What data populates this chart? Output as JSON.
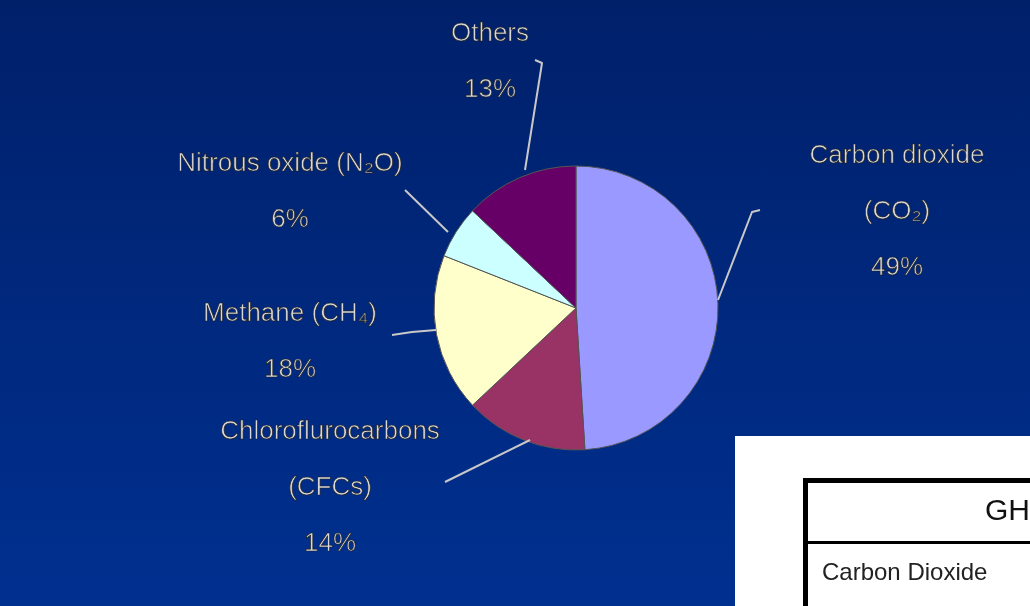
{
  "chart_data": {
    "type": "pie",
    "categories": [
      "Carbon dioxide (CO₂)",
      "Chloroflurocarbons (CFCs)",
      "Methane (CH₄)",
      "Nitrous oxide (N₂O)",
      "Others"
    ],
    "values": [
      49,
      14,
      18,
      6,
      13
    ],
    "value_labels": [
      "49%",
      "14%",
      "18%",
      "6%",
      "13%"
    ],
    "colors": [
      "#9999ff",
      "#993366",
      "#ffffcc",
      "#ccffff",
      "#660066"
    ],
    "annotations": [
      "GH",
      "Carbon Dioxide"
    ]
  }
}
